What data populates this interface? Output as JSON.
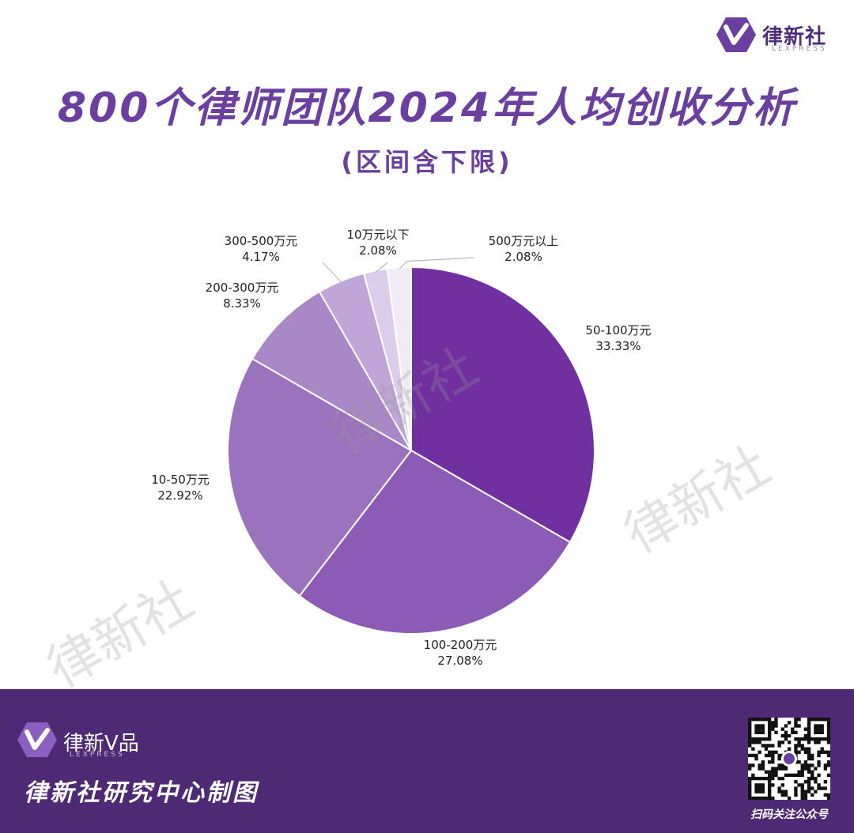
{
  "brand": {
    "name": "律新社",
    "sub": "LEXPRESS"
  },
  "title": "800个律师团队2024年人均创收分析",
  "subtitle": "(区间含下限)",
  "watermark": "律新社",
  "colors": {
    "primary": "#6a3fa0",
    "footer": "#4e2a74"
  },
  "chart_data": {
    "type": "pie",
    "title": "800个律师团队2024年人均创收分析",
    "subtitle": "(区间含下限)",
    "start_angle_deg": 0,
    "direction": "clockwise",
    "slices": [
      {
        "label": "50-100万元",
        "value": 33.33,
        "display": "33.33%",
        "color": "#7030a0"
      },
      {
        "label": "100-200万元",
        "value": 27.08,
        "display": "27.08%",
        "color": "#8b5bb5"
      },
      {
        "label": "10-50万元",
        "value": 22.92,
        "display": "22.92%",
        "color": "#9b72bd"
      },
      {
        "label": "200-300万元",
        "value": 8.33,
        "display": "8.33%",
        "color": "#a988c7"
      },
      {
        "label": "300-500万元",
        "value": 4.17,
        "display": "4.17%",
        "color": "#c0a6d8"
      },
      {
        "label": "10万元以下",
        "value": 2.08,
        "display": "2.08%",
        "color": "#dccdea"
      },
      {
        "label": "500万元以上",
        "value": 2.08,
        "display": "2.08%",
        "color": "#f1ebf6"
      }
    ]
  },
  "footer": {
    "logo_name": "律新V品",
    "logo_sub": "LEXPRESS",
    "maker": "律新社研究中心制图",
    "qr_caption": "扫码关注公众号"
  }
}
